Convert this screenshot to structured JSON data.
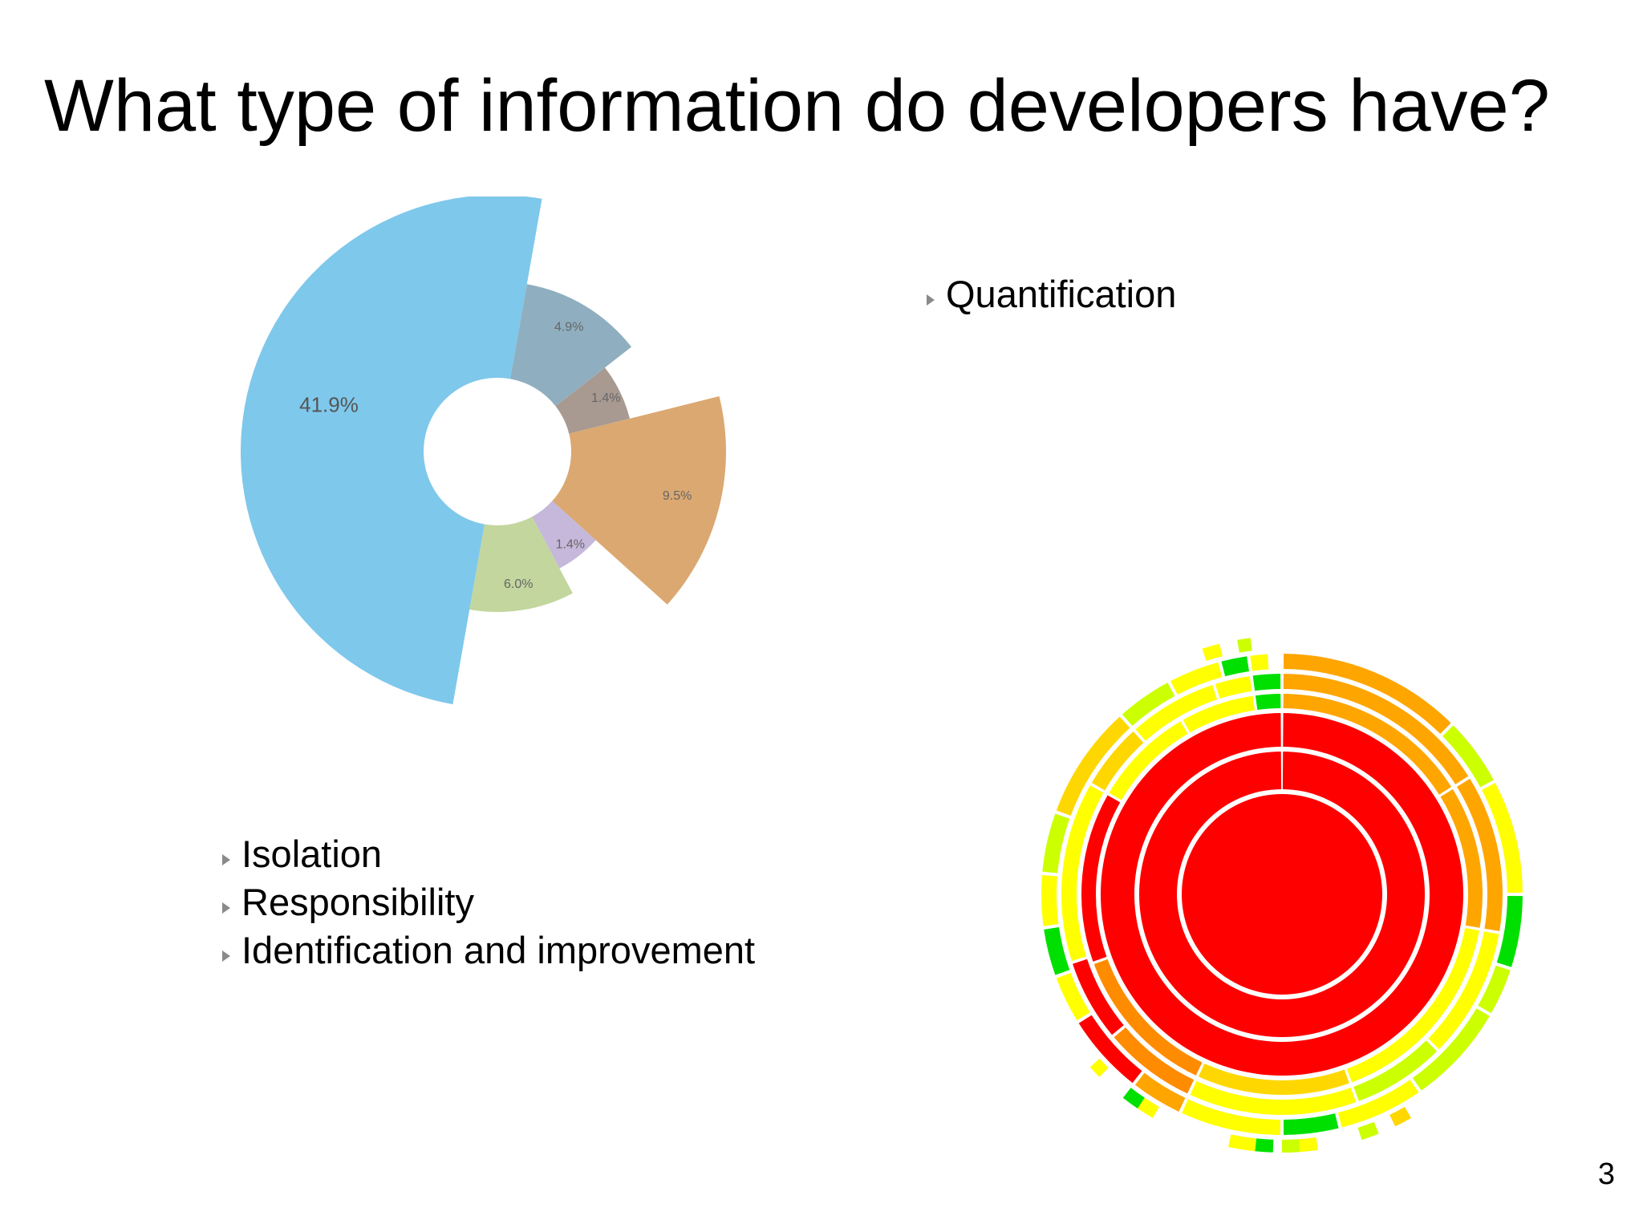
{
  "slide": {
    "title": "What type of information do developers have?",
    "page_number": "3"
  },
  "bullets_top": [
    {
      "label": "Quantification"
    }
  ],
  "bullets_left": [
    {
      "label": "Isolation"
    },
    {
      "label": "Responsibility"
    },
    {
      "label": "Identification and improvement"
    }
  ],
  "chart_data": [
    {
      "type": "pie",
      "variant": "polar-area",
      "slices": [
        {
          "label": "41.9%",
          "value": 41.9,
          "color": "#7ec8eb"
        },
        {
          "label": "4.9%",
          "value": 4.9,
          "color": "#8fafc0"
        },
        {
          "label": "1.4%",
          "value": 1.4,
          "color": "#a89a91"
        },
        {
          "label": "9.5%",
          "value": 9.5,
          "color": "#dba872"
        },
        {
          "label": "1.4%",
          "value": 1.4,
          "color": "#c5b8da"
        },
        {
          "label": "6.0%",
          "value": 6.0,
          "color": "#c3d69e"
        }
      ]
    },
    {
      "type": "sunburst",
      "colors": [
        "#ff0000",
        "#ff8c00",
        "#ffa500",
        "#ffd700",
        "#ffff00",
        "#ccff00",
        "#00e000"
      ],
      "grid": false
    }
  ]
}
